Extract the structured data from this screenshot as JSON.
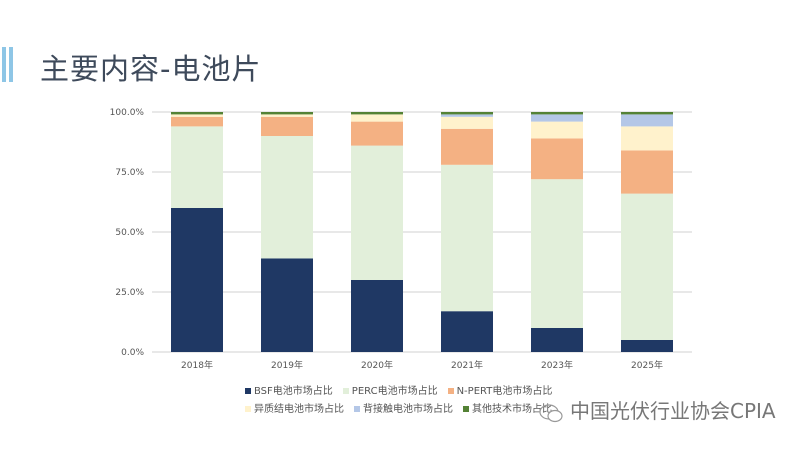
{
  "title": "主要内容-电池片",
  "watermark": "中国光伏行业协会CPIA",
  "chart_data": {
    "type": "bar",
    "stacked": true,
    "categories": [
      "2018年",
      "2019年",
      "2020年",
      "2021年",
      "2023年",
      "2025年"
    ],
    "ylim": [
      0,
      100
    ],
    "yticks": [
      "0.0%",
      "25.0%",
      "50.0%",
      "75.0%",
      "100.0%"
    ],
    "grid": true,
    "legend_position": "bottom",
    "series": [
      {
        "name": "BSF电池市场占比",
        "color": "#1f3864",
        "values": [
          60,
          39,
          30,
          17,
          10,
          5
        ]
      },
      {
        "name": "PERC电池市场占比",
        "color": "#e2efda",
        "values": [
          34,
          51,
          56,
          61,
          62,
          61
        ]
      },
      {
        "name": "N-PERT电池市场占比",
        "color": "#f4b183",
        "values": [
          4,
          8,
          10,
          15,
          17,
          18
        ]
      },
      {
        "name": "异质结电池市场占比",
        "color": "#fff2cc",
        "values": [
          1,
          1,
          3,
          5,
          7,
          10
        ]
      },
      {
        "name": "背接触电池市场占比",
        "color": "#b4c7e7",
        "values": [
          0,
          0,
          0,
          1,
          3,
          5
        ]
      },
      {
        "name": "其他技术市场占比",
        "color": "#548235",
        "values": [
          1,
          1,
          1,
          1,
          1,
          1
        ]
      }
    ]
  }
}
